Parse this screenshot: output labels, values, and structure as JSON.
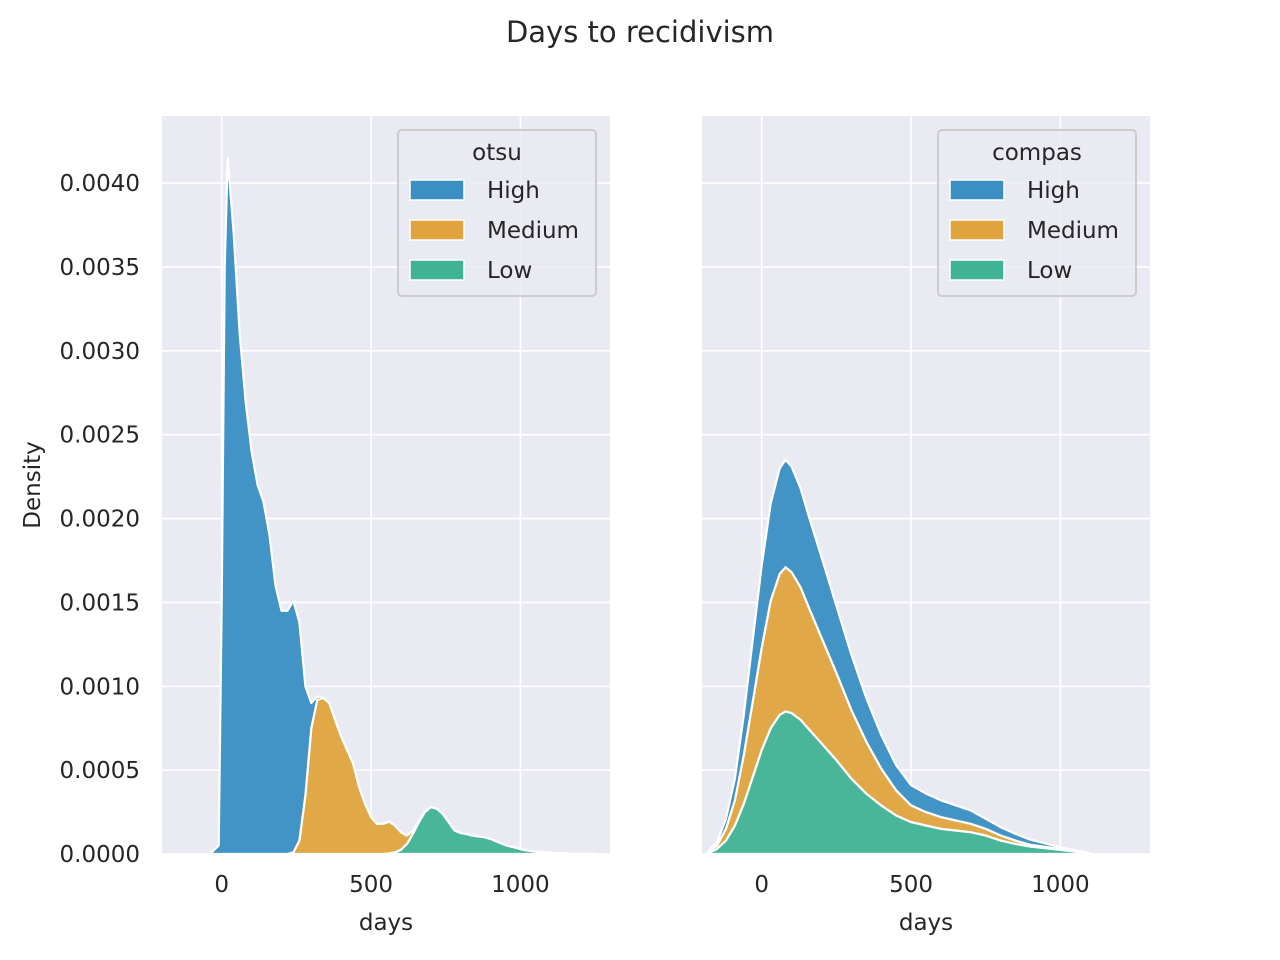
{
  "figure": {
    "suptitle": "Days to recidivism"
  },
  "colors": {
    "background": "#eaeaf2",
    "grid": "#ffffff",
    "High": "#3a8fc3",
    "Medium": "#e0a43e",
    "Low": "#40b394"
  },
  "chart_data": [
    {
      "type": "area",
      "stacked": true,
      "title": "",
      "xlabel": "days",
      "ylabel": "Density",
      "xlim": [
        -200,
        1300
      ],
      "ylim": [
        0,
        0.0044
      ],
      "xticks": [
        0,
        500,
        1000
      ],
      "xtick_labels": [
        "0",
        "500",
        "1000"
      ],
      "yticks": [
        0.0,
        0.0005,
        0.001,
        0.0015,
        0.002,
        0.0025,
        0.003,
        0.0035,
        0.004
      ],
      "ytick_labels": [
        "0.0000",
        "0.0005",
        "0.0010",
        "0.0015",
        "0.0020",
        "0.0025",
        "0.0030",
        "0.0035",
        "0.0040"
      ],
      "grid": true,
      "legend": {
        "title": "otsu",
        "position": "top-right",
        "entries": [
          "High",
          "Medium",
          "Low"
        ]
      },
      "x": [
        -40,
        -10,
        0,
        10,
        20,
        40,
        60,
        80,
        100,
        120,
        140,
        160,
        180,
        200,
        220,
        240,
        260,
        280,
        300,
        320,
        340,
        360,
        380,
        400,
        420,
        440,
        460,
        480,
        500,
        520,
        540,
        560,
        580,
        600,
        620,
        640,
        660,
        680,
        700,
        720,
        740,
        760,
        780,
        800,
        820,
        840,
        860,
        880,
        900,
        920,
        940,
        960,
        980,
        1000,
        1020,
        1050,
        1080,
        1110,
        1150,
        1200,
        1250
      ],
      "series": [
        {
          "name": "Low",
          "values": [
            0,
            0,
            0,
            0,
            0,
            0,
            0,
            0,
            0,
            0,
            0,
            0,
            0,
            0,
            0,
            0,
            0,
            0,
            0,
            0,
            0,
            0,
            0,
            0,
            0,
            0,
            0,
            0,
            0,
            0,
            0,
            3e-06,
            1e-05,
            2.5e-05,
            6e-05,
            0.00012,
            0.00019,
            0.00025,
            0.00028,
            0.00027,
            0.00024,
            0.00019,
            0.00014,
            0.000125,
            0.00012,
            0.00011,
            0.000105,
            0.0001,
            9e-05,
            7.5e-05,
            6e-05,
            4.8e-05,
            4e-05,
            3e-05,
            2.2e-05,
            1.5e-05,
            1e-05,
            6e-06,
            3e-06,
            1e-06,
            0
          ]
        },
        {
          "name": "Medium",
          "values": [
            0,
            0,
            0,
            0,
            0,
            0,
            0,
            0,
            0,
            0,
            0,
            0,
            0,
            0,
            0,
            1e-05,
            8e-05,
            0.00035,
            0.00075,
            0.00092,
            0.00093,
            0.0009,
            0.0008,
            0.0007,
            0.00062,
            0.00054,
            0.0004,
            0.0003,
            0.00022,
            0.00018,
            0.00018,
            0.00019,
            0.00016,
            0.000105,
            5e-05,
            1.8e-05,
            5e-06,
            1e-06,
            0,
            0,
            0,
            0,
            0,
            0,
            0,
            0,
            0,
            0,
            0,
            0,
            0,
            0,
            0,
            0,
            0,
            0,
            0,
            0,
            0,
            0,
            0
          ]
        },
        {
          "name": "High",
          "values": [
            0,
            5e-05,
            0.0015,
            0.0035,
            0.00415,
            0.0037,
            0.0031,
            0.0027,
            0.0024,
            0.0022,
            0.0021,
            0.0019,
            0.0016,
            0.00145,
            0.00145,
            0.0015,
            0.0013,
            0.00065,
            0.00015,
            2e-05,
            0,
            0,
            0,
            0,
            0,
            0,
            0,
            0,
            0,
            0,
            0,
            0,
            0,
            0,
            0,
            0,
            0,
            0,
            0,
            0,
            0,
            0,
            0,
            0,
            0,
            0,
            0,
            0,
            0,
            0,
            0,
            0,
            0,
            0,
            0,
            0,
            0,
            0,
            0,
            0,
            0
          ]
        }
      ]
    },
    {
      "type": "area",
      "stacked": true,
      "title": "",
      "xlabel": "days",
      "ylabel": "",
      "xlim": [
        -200,
        1300
      ],
      "ylim": [
        0,
        0.0044
      ],
      "xticks": [
        0,
        500,
        1000
      ],
      "xtick_labels": [
        "0",
        "500",
        "1000"
      ],
      "yticks": [
        0.0,
        0.0005,
        0.001,
        0.0015,
        0.002,
        0.0025,
        0.003,
        0.0035,
        0.004
      ],
      "ytick_labels": [],
      "grid": true,
      "legend": {
        "title": "compas",
        "position": "top-right",
        "entries": [
          "High",
          "Medium",
          "Low"
        ]
      },
      "x": [
        -180,
        -150,
        -120,
        -90,
        -60,
        -30,
        0,
        30,
        60,
        80,
        100,
        130,
        160,
        200,
        250,
        300,
        350,
        400,
        450,
        500,
        550,
        600,
        650,
        700,
        750,
        800,
        850,
        900,
        950,
        1000,
        1050,
        1100
      ],
      "series": [
        {
          "name": "Low",
          "values": [
            5e-06,
            3e-05,
            8e-05,
            0.00017,
            0.0003,
            0.00046,
            0.00062,
            0.00075,
            0.00083,
            0.00085,
            0.00084,
            0.0008,
            0.00074,
            0.00066,
            0.00056,
            0.00045,
            0.00036,
            0.00029,
            0.00023,
            0.00019,
            0.00017,
            0.00015,
            0.00014,
            0.00013,
            0.00011,
            8e-05,
            6e-05,
            4.5e-05,
            3.5e-05,
            2.5e-05,
            1.5e-05,
            5e-06
          ]
        },
        {
          "name": "Medium",
          "values": [
            5e-06,
            2e-05,
            7e-05,
            0.00015,
            0.00029,
            0.00045,
            0.00061,
            0.00076,
            0.00084,
            0.00086,
            0.00084,
            0.00079,
            0.00072,
            0.00063,
            0.00052,
            0.00041,
            0.00031,
            0.00022,
            0.00015,
            0.0001,
            8e-05,
            7e-05,
            6e-05,
            5e-05,
            4e-05,
            3e-05,
            2e-05,
            1e-05,
            8e-06,
            5e-06,
            2e-06,
            0
          ]
        },
        {
          "name": "High",
          "values": [
            5e-06,
            2e-05,
            6e-05,
            0.00013,
            0.00024,
            0.00037,
            0.00049,
            0.00058,
            0.00063,
            0.00064,
            0.00063,
            0.00059,
            0.00054,
            0.00048,
            0.0004,
            0.00033,
            0.00026,
            0.0002,
            0.00015,
            0.00012,
            0.00011,
            0.0001,
            9e-05,
            8e-05,
            6e-05,
            5e-05,
            4e-05,
            3e-05,
            2e-05,
            1e-05,
            5e-06,
            0
          ]
        }
      ]
    }
  ]
}
